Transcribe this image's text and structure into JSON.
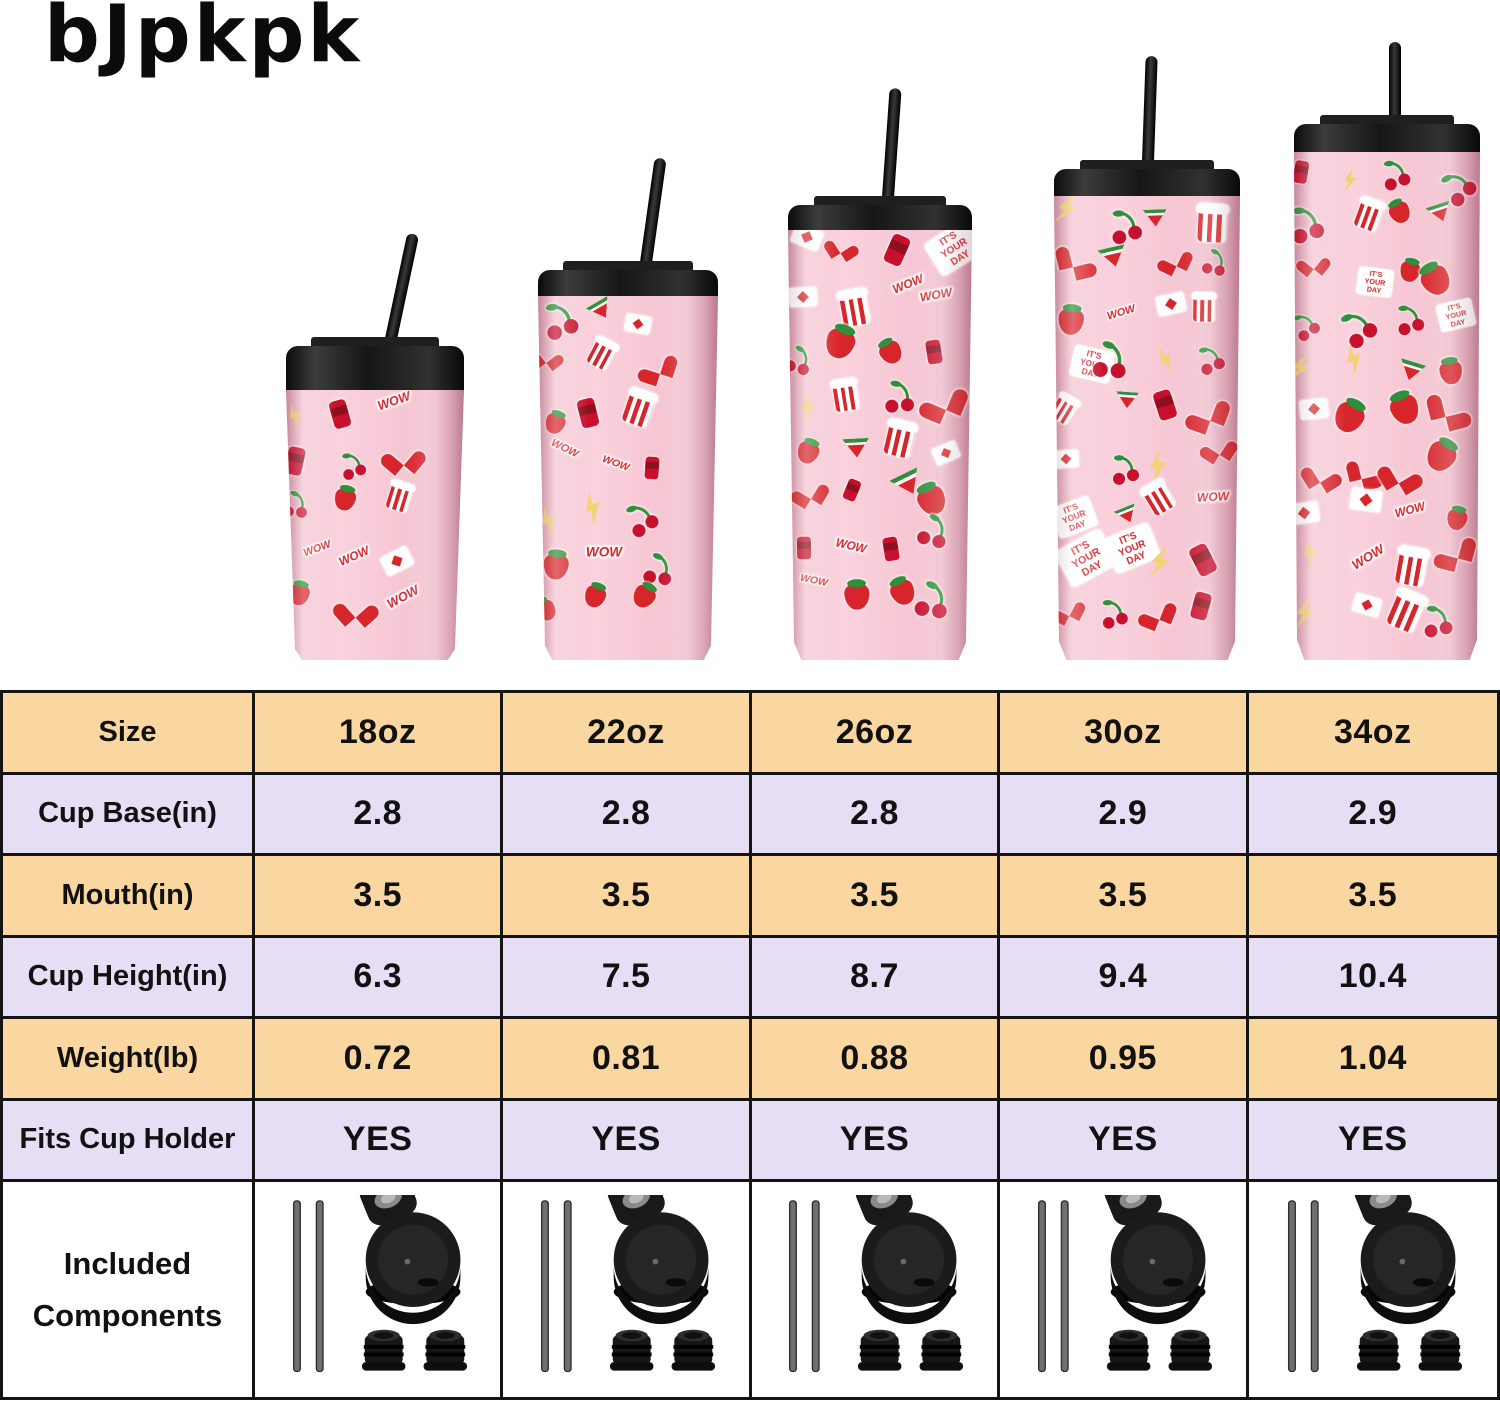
{
  "brand": "bJpkpk",
  "tumblers": [
    {
      "size": "18oz"
    },
    {
      "size": "22oz"
    },
    {
      "size": "26oz"
    },
    {
      "size": "30oz"
    },
    {
      "size": "34oz"
    }
  ],
  "stickers": {
    "types": [
      "heart",
      "cherry",
      "strawberry",
      "watermelon",
      "lightning",
      "its-your-day-badge",
      "wow-badge",
      "popcorn",
      "envelope",
      "soda-can"
    ],
    "badge_text": "IT'S YOUR DAY",
    "wow_text": "WOW"
  },
  "table": {
    "rows": [
      {
        "label": "Size",
        "tone": "yellow",
        "values": [
          "18oz",
          "22oz",
          "26oz",
          "30oz",
          "34oz"
        ]
      },
      {
        "label": "Cup Base(in)",
        "tone": "lavender",
        "values": [
          "2.8",
          "2.8",
          "2.8",
          "2.9",
          "2.9"
        ]
      },
      {
        "label": "Mouth(in)",
        "tone": "yellow",
        "values": [
          "3.5",
          "3.5",
          "3.5",
          "3.5",
          "3.5"
        ]
      },
      {
        "label": "Cup Height(in)",
        "tone": "lavender",
        "values": [
          "6.3",
          "7.5",
          "8.7",
          "9.4",
          "10.4"
        ]
      },
      {
        "label": "Weight(lb)",
        "tone": "yellow",
        "values": [
          "0.72",
          "0.81",
          "0.88",
          "0.95",
          "1.04"
        ]
      },
      {
        "label": "Fits Cup Holder",
        "tone": "lavender",
        "values": [
          "YES",
          "YES",
          "YES",
          "YES",
          "YES"
        ]
      }
    ],
    "components_row": {
      "label_line1": "Included",
      "label_line2": "Components",
      "items": [
        "two metal straws",
        "flip lid",
        "two stoppers"
      ]
    }
  },
  "chart_data": {
    "type": "table",
    "columns": [
      "Size",
      "18oz",
      "22oz",
      "26oz",
      "30oz",
      "34oz"
    ],
    "rows": [
      [
        "Cup Base(in)",
        "2.8",
        "2.8",
        "2.8",
        "2.9",
        "2.9"
      ],
      [
        "Mouth(in)",
        "3.5",
        "3.5",
        "3.5",
        "3.5",
        "3.5"
      ],
      [
        "Cup Height(in)",
        "6.3",
        "7.5",
        "8.7",
        "9.4",
        "10.4"
      ],
      [
        "Weight(lb)",
        "0.72",
        "0.81",
        "0.88",
        "0.95",
        "1.04"
      ],
      [
        "Fits Cup Holder",
        "YES",
        "YES",
        "YES",
        "YES",
        "YES"
      ],
      [
        "Included Components",
        "straws+lid+stoppers",
        "straws+lid+stoppers",
        "straws+lid+stoppers",
        "straws+lid+stoppers",
        "straws+lid+stoppers"
      ]
    ]
  },
  "colors": {
    "table_yellow": "#fad7a1",
    "table_lavender": "#e6def5",
    "table_border": "#141414",
    "cup_pink": "#f6c8d4",
    "lid_black": "#1b1b1b",
    "sticker_red": "#d6252b",
    "sticker_green": "#2f8f3a",
    "background": "#ffffff"
  }
}
